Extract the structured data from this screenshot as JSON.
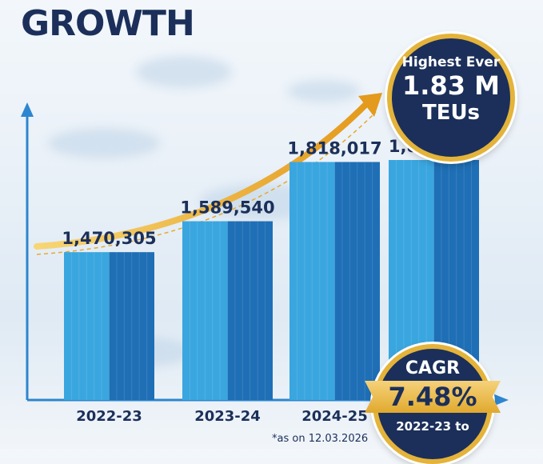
{
  "title": "GROWTH",
  "badge_top": {
    "line1": "Highest Ever",
    "line2": "1.83 M",
    "line3": "TEUs"
  },
  "badge_cagr": {
    "label": "CAGR",
    "value": "7.48%",
    "period": "2022-23 to"
  },
  "footnote": "*as on 12.03.2026",
  "colors": {
    "bar_light": "#3aa6df",
    "bar_dark": "#1f6fb6",
    "arrow": "#e8a92a",
    "axis": "#2d86cf",
    "navy": "#1b2f5a"
  },
  "chart_data": {
    "type": "bar",
    "categories": [
      "2022-23",
      "2023-24",
      "2024-25",
      ""
    ],
    "values": [
      1470305,
      1589540,
      1818017,
      1825691
    ],
    "value_labels": [
      "1,470,305",
      "1,589,540",
      "1,818,017",
      "1,825,691*"
    ],
    "ylim": [
      0,
      2100000
    ],
    "grid": false,
    "legend": "none"
  }
}
